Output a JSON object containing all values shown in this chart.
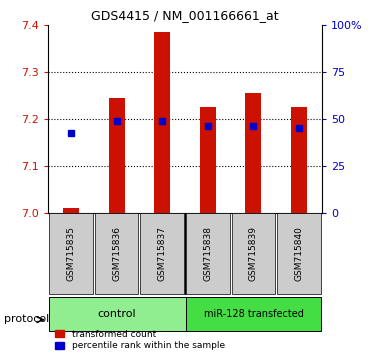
{
  "title": "GDS4415 / NM_001166661_at",
  "samples": [
    "GSM715835",
    "GSM715836",
    "GSM715837",
    "GSM715838",
    "GSM715839",
    "GSM715840"
  ],
  "bar_bottom": [
    7.0,
    7.0,
    7.0,
    7.0,
    7.0,
    7.0
  ],
  "bar_top": [
    7.01,
    7.245,
    7.385,
    7.225,
    7.255,
    7.225
  ],
  "blue_dots": [
    7.17,
    7.196,
    7.194,
    7.185,
    7.185,
    7.18
  ],
  "ylim": [
    7.0,
    7.4
  ],
  "yticks_left": [
    7.0,
    7.1,
    7.2,
    7.3,
    7.4
  ],
  "yticks_right": [
    0,
    25,
    50,
    75,
    100
  ],
  "yticks_right_labels": [
    "0",
    "25",
    "50",
    "75",
    "100%"
  ],
  "grid_lines": [
    7.1,
    7.2,
    7.3
  ],
  "bar_color": "#CC1100",
  "dot_color": "#0000CC",
  "control_color": "#90EE90",
  "transfected_color": "#44DD44",
  "label_bg_color": "#CCCCCC",
  "legend_labels": [
    "transformed count",
    "percentile rank within the sample"
  ]
}
